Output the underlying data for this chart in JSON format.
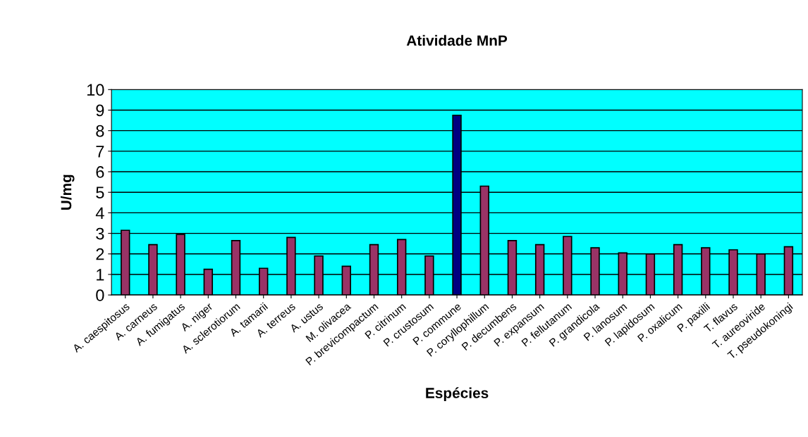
{
  "chart_data": {
    "type": "bar",
    "title": "Atividade MnP",
    "xlabel": "Espécies",
    "ylabel": "U/mg",
    "categories": [
      "A. caespitosus",
      "A. carneus",
      "A. fumigatus",
      "A. niger",
      "A. sclerotiorum",
      "A. tamarii",
      "A. terreus",
      "A. ustus",
      "M. olivacea",
      "P. brevicompactum",
      "P. citrinum",
      "P. crustosum",
      "P. commune",
      "P. coryllophillum",
      "P. decumbens",
      "P. expansum",
      "P. fellutanum",
      "P. grandicola",
      "P. lanosum",
      "P. lapidosum",
      "P. oxalicum",
      "P. paxilli",
      "T. flavus",
      "T. aureoviride",
      "T. pseudokoningi"
    ],
    "values": [
      3.15,
      2.45,
      2.95,
      1.25,
      2.65,
      1.3,
      2.8,
      1.9,
      1.4,
      2.45,
      2.7,
      1.9,
      8.75,
      5.3,
      2.65,
      2.45,
      2.85,
      2.3,
      2.05,
      2.0,
      2.45,
      2.3,
      2.2,
      2.0,
      2.35
    ],
    "colors": [
      "#993366",
      "#993366",
      "#993366",
      "#993366",
      "#993366",
      "#993366",
      "#993366",
      "#993366",
      "#993366",
      "#993366",
      "#993366",
      "#993366",
      "#000080",
      "#993366",
      "#993366",
      "#993366",
      "#993366",
      "#993366",
      "#993366",
      "#993366",
      "#993366",
      "#993366",
      "#993366",
      "#993366",
      "#993366"
    ],
    "ylim": [
      0,
      10
    ],
    "yticks": [
      0,
      1,
      2,
      3,
      4,
      5,
      6,
      7,
      8,
      9,
      10
    ],
    "grid": "y",
    "legend": false
  }
}
